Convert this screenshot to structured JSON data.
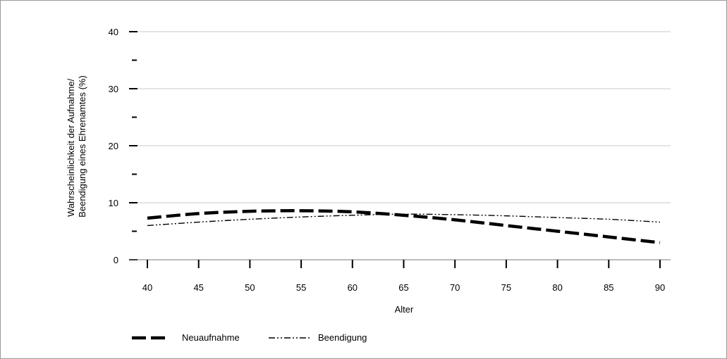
{
  "chart_data": {
    "type": "line",
    "title": "",
    "xlabel": "Alter",
    "ylabel_lines": [
      "Wahrscheinlichkeit der Aufnahme/",
      "Beendigung eines Ehrenamtes (%)"
    ],
    "x_ticks": [
      40,
      45,
      50,
      55,
      60,
      65,
      70,
      75,
      80,
      85,
      90
    ],
    "y_ticks": [
      0,
      10,
      20,
      30,
      40
    ],
    "y_minor_ticks": [
      5,
      15,
      25,
      35
    ],
    "xlim": [
      40,
      90
    ],
    "ylim": [
      0,
      40
    ],
    "grid": "horizontal",
    "legend_position": "bottom-left",
    "x": [
      40,
      45,
      50,
      55,
      60,
      65,
      70,
      75,
      80,
      85,
      90
    ],
    "series": [
      {
        "name": "Neuaufnahme",
        "style": "long-dash-bold",
        "values": [
          7.3,
          8.1,
          8.5,
          8.6,
          8.4,
          7.8,
          7.0,
          6.0,
          5.0,
          4.0,
          3.0
        ]
      },
      {
        "name": "Beendigung",
        "style": "dash-dot-dot",
        "values": [
          6.0,
          6.6,
          7.1,
          7.5,
          7.8,
          8.0,
          7.9,
          7.7,
          7.4,
          7.1,
          6.6
        ]
      }
    ]
  }
}
